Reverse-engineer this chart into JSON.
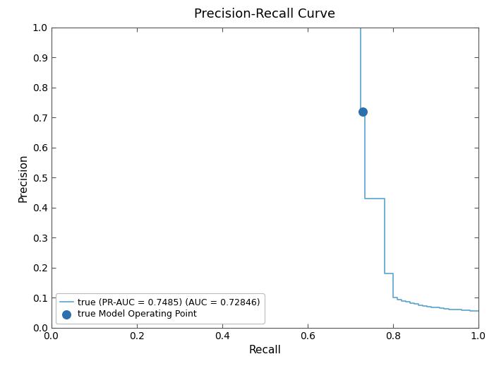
{
  "title": "Precision-Recall Curve",
  "xlabel": "Recall",
  "ylabel": "Precision",
  "line_color": "#5ba3d0",
  "scatter_color": "#2b6fad",
  "line_label": "true (PR-AUC = 0.7485) (AUC = 0.72846)",
  "scatter_label": "true Model Operating Point",
  "operating_point_recall": 0.72846,
  "operating_point_precision": 0.72,
  "xlim": [
    0,
    1.0
  ],
  "ylim": [
    0,
    1.0
  ],
  "recall_pts": [
    0.0,
    0.69,
    0.69,
    0.695,
    0.695,
    0.7,
    0.7,
    0.705,
    0.705,
    0.71,
    0.71,
    0.715,
    0.715,
    0.72,
    0.72,
    0.725,
    0.725,
    0.73,
    0.73,
    0.735,
    0.735,
    0.74,
    0.74,
    0.745,
    0.745,
    0.75,
    0.75,
    0.755,
    0.755,
    0.76,
    0.76,
    0.765,
    0.765,
    0.77,
    0.77,
    0.775,
    0.775,
    0.78,
    0.78,
    0.785,
    0.785,
    0.79,
    0.79,
    0.795,
    0.795,
    0.8,
    0.8,
    0.81,
    0.81,
    0.82,
    0.82,
    0.83,
    0.83,
    0.84,
    0.84,
    0.85,
    0.85,
    0.86,
    0.86,
    0.87,
    0.87,
    0.88,
    0.88,
    0.89,
    0.89,
    0.9,
    0.9,
    0.91,
    0.91,
    0.92,
    0.92,
    0.93,
    0.93,
    0.94,
    0.94,
    0.95,
    0.95,
    0.96,
    0.96,
    0.97,
    0.97,
    0.98,
    0.98,
    0.99,
    0.99,
    1.0
  ],
  "precision_pts": [
    1.0,
    1.0,
    1.0,
    1.0,
    1.0,
    1.0,
    1.0,
    1.0,
    1.0,
    1.0,
    1.0,
    1.0,
    1.0,
    1.0,
    1.0,
    1.0,
    0.72,
    0.72,
    0.72,
    0.72,
    0.43,
    0.43,
    0.43,
    0.43,
    0.43,
    0.43,
    0.43,
    0.43,
    0.43,
    0.43,
    0.43,
    0.43,
    0.43,
    0.43,
    0.43,
    0.43,
    0.43,
    0.43,
    0.18,
    0.18,
    0.18,
    0.18,
    0.18,
    0.18,
    0.18,
    0.18,
    0.1,
    0.1,
    0.095,
    0.095,
    0.09,
    0.09,
    0.086,
    0.086,
    0.082,
    0.082,
    0.079,
    0.079,
    0.076,
    0.076,
    0.073,
    0.073,
    0.071,
    0.071,
    0.069,
    0.069,
    0.067,
    0.067,
    0.065,
    0.065,
    0.064,
    0.064,
    0.062,
    0.062,
    0.061,
    0.061,
    0.06,
    0.06,
    0.059,
    0.059,
    0.058,
    0.058,
    0.057,
    0.057,
    0.056,
    0.056
  ],
  "xticks": [
    0,
    0.2,
    0.4,
    0.6,
    0.8,
    1.0
  ],
  "yticks": [
    0,
    0.1,
    0.2,
    0.3,
    0.4,
    0.5,
    0.6,
    0.7,
    0.8,
    0.9,
    1.0
  ],
  "figsize": [
    7.0,
    5.25
  ],
  "dpi": 100,
  "title_fontsize": 13,
  "label_fontsize": 11,
  "tick_fontsize": 10,
  "legend_fontsize": 9,
  "line_width": 1.2,
  "scatter_size": 70
}
